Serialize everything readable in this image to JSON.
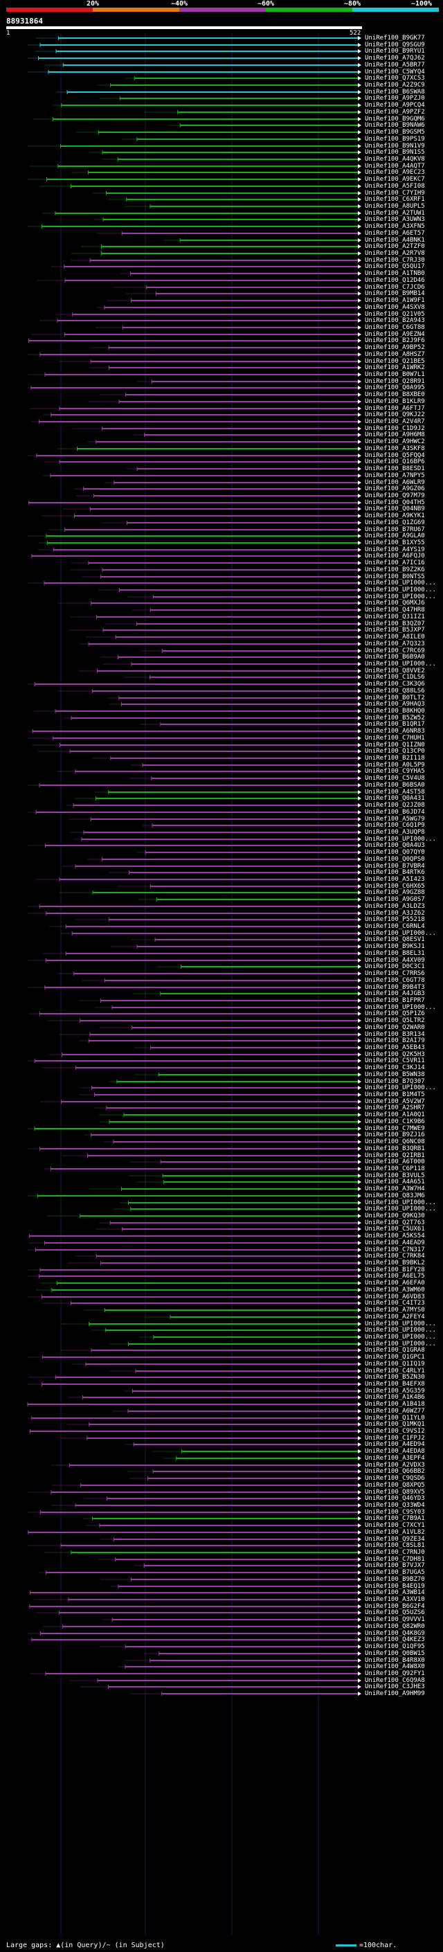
{
  "legend": {
    "percent_labels": [
      "20%",
      "~40%",
      "~60%",
      "~80%",
      "~100%"
    ],
    "colors": [
      "#e0141e",
      "#e07a1a",
      "#9e3aa8",
      "#15b215",
      "#1ec7d8"
    ]
  },
  "query": {
    "id": "88931864",
    "start": "1",
    "end": "522"
  },
  "hits": [
    {
      "label": "UniRef100_B9GK77",
      "color": "#1ec7d8"
    },
    {
      "label": "UniRef100_Q9SGU9",
      "color": "#1ec7d8"
    },
    {
      "label": "UniRef100_B9RYU1",
      "color": "#1ec7d8"
    },
    {
      "label": "UniRef100_A7QJ62",
      "color": "#1ec7d8"
    },
    {
      "label": "UniRef100_A5BR77",
      "color": "#1ec7d8"
    },
    {
      "label": "UniRef100_C5WYQ4",
      "color": "#1ec7d8"
    },
    {
      "label": "UniRef100_Q7XCS3",
      "color": "#15b215"
    },
    {
      "label": "UniRef100_A2Z9C9",
      "color": "#15b215"
    },
    {
      "label": "UniRef100_B6SWA8",
      "color": "#1ec7d8"
    },
    {
      "label": "UniRef100_A9PZJ0",
      "color": "#15b215"
    },
    {
      "label": "UniRef100_A9PCQ4",
      "color": "#15b215"
    },
    {
      "label": "UniRef100_A9PZF2",
      "color": "#15b215"
    },
    {
      "label": "UniRef100_B9GQM6",
      "color": "#15b215"
    },
    {
      "label": "UniRef100_B9NAW6",
      "color": "#15b215"
    },
    {
      "label": "UniRef100_B9GSM5",
      "color": "#15b215"
    },
    {
      "label": "UniRef100_B9PS19",
      "color": "#15b215"
    },
    {
      "label": "UniRef100_B9N1V9",
      "color": "#15b215"
    },
    {
      "label": "UniRef100_B9N1S5",
      "color": "#15b215"
    },
    {
      "label": "UniRef100_A4QKV8",
      "color": "#15b215"
    },
    {
      "label": "UniRef100_A4AQT7",
      "color": "#15b215"
    },
    {
      "label": "UniRef100_A9EC23",
      "color": "#15b215"
    },
    {
      "label": "UniRef100_A9EKC7",
      "color": "#15b215"
    },
    {
      "label": "UniRef100_A5FI08",
      "color": "#15b215"
    },
    {
      "label": "UniRef100_C7YIH9",
      "color": "#15b215"
    },
    {
      "label": "UniRef100_C6XRF1",
      "color": "#15b215"
    },
    {
      "label": "UniRef100_A8UPL5",
      "color": "#15b215"
    },
    {
      "label": "UniRef100_A2TUW1",
      "color": "#15b215"
    },
    {
      "label": "UniRef100_A3UWN3",
      "color": "#15b215"
    },
    {
      "label": "UniRef100_A3XFN5",
      "color": "#15b215"
    },
    {
      "label": "UniRef100_A6ET57",
      "color": "#9e3aa8"
    },
    {
      "label": "UniRef100_A4BNK1",
      "color": "#15b215"
    },
    {
      "label": "UniRef100_A2TZF0",
      "color": "#15b215"
    },
    {
      "label": "UniRef100_A2R7V8",
      "color": "#15b215"
    },
    {
      "label": "UniRef100_C7RJ30",
      "color": "#9e3aa8"
    },
    {
      "label": "UniRef100_Q5QU17",
      "color": "#9e3aa8"
    },
    {
      "label": "UniRef100_A1TNB0",
      "color": "#9e3aa8"
    },
    {
      "label": "UniRef100_Q12D46",
      "color": "#9e3aa8"
    },
    {
      "label": "UniRef100_C7JCD6",
      "color": "#9e3aa8"
    },
    {
      "label": "UniRef100_B9MB14",
      "color": "#9e3aa8"
    },
    {
      "label": "UniRef100_A1W9F1",
      "color": "#9e3aa8"
    },
    {
      "label": "UniRef100_A4SXV8",
      "color": "#9e3aa8"
    },
    {
      "label": "UniRef100_Q21V05",
      "color": "#9e3aa8"
    },
    {
      "label": "UniRef100_B2A943",
      "color": "#9e3aa8"
    },
    {
      "label": "UniRef100_C6GT88",
      "color": "#9e3aa8"
    },
    {
      "label": "UniRef100_A9EZN4",
      "color": "#9e3aa8"
    },
    {
      "label": "UniRef100_B2J9F6",
      "color": "#9e3aa8"
    },
    {
      "label": "UniRef100_A9BP52",
      "color": "#9e3aa8"
    },
    {
      "label": "UniRef100_A8HSZ7",
      "color": "#9e3aa8"
    },
    {
      "label": "UniRef100_Q21BE5",
      "color": "#9e3aa8"
    },
    {
      "label": "UniRef100_A1WRK2",
      "color": "#9e3aa8"
    },
    {
      "label": "UniRef100_B0W7L1",
      "color": "#9e3aa8"
    },
    {
      "label": "UniRef100_Q28R91",
      "color": "#9e3aa8"
    },
    {
      "label": "UniRef100_Q0A995",
      "color": "#9e3aa8"
    },
    {
      "label": "UniRef100_B8XBE0",
      "color": "#9e3aa8"
    },
    {
      "label": "UniRef100_B1KLR9",
      "color": "#9e3aa8"
    },
    {
      "label": "UniRef100_A6FTJ7",
      "color": "#9e3aa8"
    },
    {
      "label": "UniRef100_Q9KJ22",
      "color": "#9e3aa8"
    },
    {
      "label": "UniRef100_A2V4R7",
      "color": "#9e3aa8"
    },
    {
      "label": "UniRef100_C1D9J2",
      "color": "#9e3aa8"
    },
    {
      "label": "UniRef100_A9H6M8",
      "color": "#9e3aa8"
    },
    {
      "label": "UniRef100_A9HWC2",
      "color": "#9e3aa8"
    },
    {
      "label": "UniRef100_A3SKF8",
      "color": "#15b215"
    },
    {
      "label": "UniRef100_Q5FQQ4",
      "color": "#9e3aa8"
    },
    {
      "label": "UniRef100_Q16BP6",
      "color": "#9e3aa8"
    },
    {
      "label": "UniRef100_B8ESD1",
      "color": "#9e3aa8"
    },
    {
      "label": "UniRef100_A7NPY5",
      "color": "#9e3aa8"
    },
    {
      "label": "UniRef100_A6WLR9",
      "color": "#9e3aa8"
    },
    {
      "label": "UniRef100_A9GZ06",
      "color": "#9e3aa8"
    },
    {
      "label": "UniRef100_Q97M79",
      "color": "#9e3aa8"
    },
    {
      "label": "UniRef100_Q04TH5",
      "color": "#9e3aa8"
    },
    {
      "label": "UniRef100_Q04NB9",
      "color": "#9e3aa8"
    },
    {
      "label": "UniRef100_A9KYK1",
      "color": "#9e3aa8"
    },
    {
      "label": "UniRef100_Q1ZG69",
      "color": "#9e3aa8"
    },
    {
      "label": "UniRef100_B7RU67",
      "color": "#9e3aa8"
    },
    {
      "label": "UniRef100_A9GLA0",
      "color": "#15b215"
    },
    {
      "label": "UniRef100_B1XY55",
      "color": "#15b215"
    },
    {
      "label": "UniRef100_A4YS19",
      "color": "#9e3aa8"
    },
    {
      "label": "UniRef100_A6FQJ0",
      "color": "#9e3aa8"
    },
    {
      "label": "UniRef100_A7IC16",
      "color": "#9e3aa8"
    },
    {
      "label": "UniRef100_B9Z2K6",
      "color": "#9e3aa8"
    },
    {
      "label": "UniRef100_B0NTS5",
      "color": "#9e3aa8"
    },
    {
      "label": "UniRef100_UPI000...",
      "color": "#9e3aa8"
    },
    {
      "label": "UniRef100_UPI000...",
      "color": "#9e3aa8"
    },
    {
      "label": "UniRef100_UPI000...",
      "color": "#9e3aa8"
    },
    {
      "label": "UniRef100_Q6MXJ6",
      "color": "#9e3aa8"
    },
    {
      "label": "UniRef100_Q47HR8",
      "color": "#9e3aa8"
    },
    {
      "label": "UniRef100_Q31IZ1",
      "color": "#9e3aa8"
    },
    {
      "label": "UniRef100_B3QZ07",
      "color": "#9e3aa8"
    },
    {
      "label": "UniRef100_B5JXP7",
      "color": "#9e3aa8"
    },
    {
      "label": "UniRef100_A8ILE0",
      "color": "#9e3aa8"
    },
    {
      "label": "UniRef100_A7Q323",
      "color": "#9e3aa8"
    },
    {
      "label": "UniRef100_C7RC69",
      "color": "#9e3aa8"
    },
    {
      "label": "UniRef100_B6B9A0",
      "color": "#9e3aa8"
    },
    {
      "label": "UniRef100_UPI000...",
      "color": "#9e3aa8"
    },
    {
      "label": "UniRef100_Q8VVE2",
      "color": "#9e3aa8"
    },
    {
      "label": "UniRef100_C1DLS6",
      "color": "#9e3aa8"
    },
    {
      "label": "UniRef100_C3K3Q6",
      "color": "#9e3aa8"
    },
    {
      "label": "UniRef100_Q88LS6",
      "color": "#9e3aa8"
    },
    {
      "label": "UniRef100_B0TLT2",
      "color": "#9e3aa8"
    },
    {
      "label": "UniRef100_A9HAQ3",
      "color": "#9e3aa8"
    },
    {
      "label": "UniRef100_B8KHQ0",
      "color": "#9e3aa8"
    },
    {
      "label": "UniRef100_B5ZW52",
      "color": "#9e3aa8"
    },
    {
      "label": "UniRef100_B1QR17",
      "color": "#9e3aa8"
    },
    {
      "label": "UniRef100_A6NR83",
      "color": "#9e3aa8"
    },
    {
      "label": "UniRef100_C7HUH1",
      "color": "#9e3aa8"
    },
    {
      "label": "UniRef100_Q1IZN0",
      "color": "#9e3aa8"
    },
    {
      "label": "UniRef100_Q13CP0",
      "color": "#9e3aa8"
    },
    {
      "label": "UniRef100_B2I118",
      "color": "#9e3aa8"
    },
    {
      "label": "UniRef100_A0L5P9",
      "color": "#9e3aa8"
    },
    {
      "label": "UniRef100_C9YHA5",
      "color": "#9e3aa8"
    },
    {
      "label": "UniRef100_C5V4U8",
      "color": "#9e3aa8"
    },
    {
      "label": "UniRef100_B6BSA0",
      "color": "#9e3aa8"
    },
    {
      "label": "UniRef100_A4ST58",
      "color": "#15b215"
    },
    {
      "label": "UniRef100_Q0A431",
      "color": "#15b215"
    },
    {
      "label": "UniRef100_Q2JZ08",
      "color": "#9e3aa8"
    },
    {
      "label": "UniRef100_B6JD74",
      "color": "#9e3aa8"
    },
    {
      "label": "UniRef100_A5WG79",
      "color": "#9e3aa8"
    },
    {
      "label": "UniRef100_C6Q1P9",
      "color": "#9e3aa8"
    },
    {
      "label": "UniRef100_A3UQP8",
      "color": "#9e3aa8"
    },
    {
      "label": "UniRef100_UPI000...",
      "color": "#9e3aa8"
    },
    {
      "label": "UniRef100_Q0A4U3",
      "color": "#9e3aa8"
    },
    {
      "label": "UniRef100_Q07QY0",
      "color": "#9e3aa8"
    },
    {
      "label": "UniRef100_Q0QPS0",
      "color": "#9e3aa8"
    },
    {
      "label": "UniRef100_B7VBR4",
      "color": "#9e3aa8"
    },
    {
      "label": "UniRef100_B4RTK6",
      "color": "#9e3aa8"
    },
    {
      "label": "UniRef100_A5I423",
      "color": "#9e3aa8"
    },
    {
      "label": "UniRef100_C6HX65",
      "color": "#9e3aa8"
    },
    {
      "label": "UniRef100_A9GZ88",
      "color": "#15b215"
    },
    {
      "label": "UniRef100_A9G0S7",
      "color": "#15b215"
    },
    {
      "label": "UniRef100_A3LDZ3",
      "color": "#9e3aa8"
    },
    {
      "label": "UniRef100_A3JZ62",
      "color": "#9e3aa8"
    },
    {
      "label": "UniRef100_P55218",
      "color": "#9e3aa8"
    },
    {
      "label": "UniRef100_C6RNL4",
      "color": "#9e3aa8"
    },
    {
      "label": "UniRef100_UPI000...",
      "color": "#9e3aa8"
    },
    {
      "label": "UniRef100_Q8ESV1",
      "color": "#9e3aa8"
    },
    {
      "label": "UniRef100_B9KSJ1",
      "color": "#9e3aa8"
    },
    {
      "label": "UniRef100_B8EL31",
      "color": "#9e3aa8"
    },
    {
      "label": "UniRef100_A4XV09",
      "color": "#9e3aa8"
    },
    {
      "label": "UniRef100_D0C3C1",
      "color": "#15b215"
    },
    {
      "label": "UniRef100_C7RRS6",
      "color": "#9e3aa8"
    },
    {
      "label": "UniRef100_C6GT78",
      "color": "#9e3aa8"
    },
    {
      "label": "UniRef100_B9B4T3",
      "color": "#9e3aa8"
    },
    {
      "label": "UniRef100_A4JGB3",
      "color": "#15b215"
    },
    {
      "label": "UniRef100_B1FPR7",
      "color": "#9e3aa8"
    },
    {
      "label": "UniRef100_UPI000...",
      "color": "#9e3aa8"
    },
    {
      "label": "UniRef100_Q5P1Z6",
      "color": "#9e3aa8"
    },
    {
      "label": "UniRef100_Q5LTR2",
      "color": "#9e3aa8"
    },
    {
      "label": "UniRef100_Q2WAR0",
      "color": "#9e3aa8"
    },
    {
      "label": "UniRef100_B3R134",
      "color": "#9e3aa8"
    },
    {
      "label": "UniRef100_B2AI79",
      "color": "#9e3aa8"
    },
    {
      "label": "UniRef100_A5EB43",
      "color": "#9e3aa8"
    },
    {
      "label": "UniRef100_Q2K5H3",
      "color": "#9e3aa8"
    },
    {
      "label": "UniRef100_C5VR11",
      "color": "#9e3aa8"
    },
    {
      "label": "UniRef100_C3KJ14",
      "color": "#9e3aa8"
    },
    {
      "label": "UniRef100_B5WN38",
      "color": "#15b215"
    },
    {
      "label": "UniRef100_B7Q307",
      "color": "#15b215"
    },
    {
      "label": "UniRef100_UPI000...",
      "color": "#9e3aa8"
    },
    {
      "label": "UniRef100_B1M4T5",
      "color": "#9e3aa8"
    },
    {
      "label": "UniRef100_A5V2W7",
      "color": "#9e3aa8"
    },
    {
      "label": "UniRef100_A2SHR7",
      "color": "#9e3aa8"
    },
    {
      "label": "UniRef100_A1A0Q1",
      "color": "#15b215"
    },
    {
      "label": "UniRef100_C1K9B6",
      "color": "#15b215"
    },
    {
      "label": "UniRef100_C7MWE9",
      "color": "#15b215"
    },
    {
      "label": "UniRef100_B9ZJ16",
      "color": "#9e3aa8"
    },
    {
      "label": "UniRef100_Q6NC08",
      "color": "#9e3aa8"
    },
    {
      "label": "UniRef100_B3QRB1",
      "color": "#9e3aa8"
    },
    {
      "label": "UniRef100_Q2IRB1",
      "color": "#9e3aa8"
    },
    {
      "label": "UniRef100_A6T000",
      "color": "#9e3aa8"
    },
    {
      "label": "UniRef100_C6P118",
      "color": "#9e3aa8"
    },
    {
      "label": "UniRef100_B3VUL5",
      "color": "#15b215"
    },
    {
      "label": "UniRef100_A4A651",
      "color": "#15b215"
    },
    {
      "label": "UniRef100_A3W7H4",
      "color": "#15b215"
    },
    {
      "label": "UniRef100_Q83JM6",
      "color": "#15b215"
    },
    {
      "label": "UniRef100_UPI000...",
      "color": "#15b215"
    },
    {
      "label": "UniRef100_UPI000...",
      "color": "#15b215"
    },
    {
      "label": "UniRef100_Q9KQ30",
      "color": "#15b215"
    },
    {
      "label": "UniRef100_Q2T763",
      "color": "#9e3aa8"
    },
    {
      "label": "UniRef100_C5UX61",
      "color": "#9e3aa8"
    },
    {
      "label": "UniRef100_A5KS54",
      "color": "#9e3aa8"
    },
    {
      "label": "UniRef100_A4EAD9",
      "color": "#9e3aa8"
    },
    {
      "label": "UniRef100_C7N317",
      "color": "#9e3aa8"
    },
    {
      "label": "UniRef100_C7RK84",
      "color": "#9e3aa8"
    },
    {
      "label": "UniRef100_B9BKL2",
      "color": "#9e3aa8"
    },
    {
      "label": "UniRef100_B1FY28",
      "color": "#9e3aa8"
    },
    {
      "label": "UniRef100_A6EL75",
      "color": "#9e3aa8"
    },
    {
      "label": "UniRef100_A6EFA0",
      "color": "#15b215"
    },
    {
      "label": "UniRef100_A3WM60",
      "color": "#15b215"
    },
    {
      "label": "UniRef100_A6VD83",
      "color": "#9e3aa8"
    },
    {
      "label": "UniRef100_C4IT23",
      "color": "#9e3aa8"
    },
    {
      "label": "UniRef100_A7MYS0",
      "color": "#15b215"
    },
    {
      "label": "UniRef100_A2FEY4",
      "color": "#15b215"
    },
    {
      "label": "UniRef100_UPI000...",
      "color": "#15b215"
    },
    {
      "label": "UniRef100_UPI000...",
      "color": "#15b215"
    },
    {
      "label": "UniRef100_UPI000...",
      "color": "#15b215"
    },
    {
      "label": "UniRef100_UPI000...",
      "color": "#15b215"
    },
    {
      "label": "UniRef100_Q1GRA8",
      "color": "#9e3aa8"
    },
    {
      "label": "UniRef100_Q1GPC1",
      "color": "#9e3aa8"
    },
    {
      "label": "UniRef100_Q1IQ19",
      "color": "#9e3aa8"
    },
    {
      "label": "UniRef100_C4RLY1",
      "color": "#9e3aa8"
    },
    {
      "label": "UniRef100_B5ZN30",
      "color": "#9e3aa8"
    },
    {
      "label": "UniRef100_B4EFX8",
      "color": "#9e3aa8"
    },
    {
      "label": "UniRef100_A5G359",
      "color": "#9e3aa8"
    },
    {
      "label": "UniRef100_A1K4B6",
      "color": "#9e3aa8"
    },
    {
      "label": "UniRef100_A1B418",
      "color": "#9e3aa8"
    },
    {
      "label": "UniRef100_A6WZ77",
      "color": "#9e3aa8"
    },
    {
      "label": "UniRef100_Q1IYL0",
      "color": "#9e3aa8"
    },
    {
      "label": "UniRef100_Q1MKQ1",
      "color": "#9e3aa8"
    },
    {
      "label": "UniRef100_C9VSI2",
      "color": "#9e3aa8"
    },
    {
      "label": "UniRef100_C1FPJ2",
      "color": "#9e3aa8"
    },
    {
      "label": "UniRef100_A4ED94",
      "color": "#9e3aa8"
    },
    {
      "label": "UniRef100_A4EDA8",
      "color": "#15b215"
    },
    {
      "label": "UniRef100_A3EPF4",
      "color": "#15b215"
    },
    {
      "label": "UniRef100_A2VDX3",
      "color": "#9e3aa8"
    },
    {
      "label": "UniRef100_Q66BB2",
      "color": "#9e3aa8"
    },
    {
      "label": "UniRef100_C9QSD6",
      "color": "#9e3aa8"
    },
    {
      "label": "UniRef100_Q8XPQ5",
      "color": "#9e3aa8"
    },
    {
      "label": "UniRef100_Q89XV5",
      "color": "#9e3aa8"
    },
    {
      "label": "UniRef100_Q46YD3",
      "color": "#9e3aa8"
    },
    {
      "label": "UniRef100_Q33WD4",
      "color": "#9e3aa8"
    },
    {
      "label": "UniRef100_C9SY03",
      "color": "#9e3aa8"
    },
    {
      "label": "UniRef100_C7B9A1",
      "color": "#15b215"
    },
    {
      "label": "UniRef100_C7XCY1",
      "color": "#9e3aa8"
    },
    {
      "label": "UniRef100_A1VL82",
      "color": "#9e3aa8"
    },
    {
      "label": "UniRef100_Q9ZE34",
      "color": "#9e3aa8"
    },
    {
      "label": "UniRef100_C8SL81",
      "color": "#9e3aa8"
    },
    {
      "label": "UniRef100_C7RNJ0",
      "color": "#15b215"
    },
    {
      "label": "UniRef100_C7DH81",
      "color": "#9e3aa8"
    },
    {
      "label": "UniRef100_B7VJX7",
      "color": "#9e3aa8"
    },
    {
      "label": "UniRef100_B7UGA5",
      "color": "#9e3aa8"
    },
    {
      "label": "UniRef100_B9BZ70",
      "color": "#9e3aa8"
    },
    {
      "label": "UniRef100_B4EQ19",
      "color": "#9e3aa8"
    },
    {
      "label": "UniRef100_A3WB14",
      "color": "#9e3aa8"
    },
    {
      "label": "UniRef100_A3XV10",
      "color": "#9e3aa8"
    },
    {
      "label": "UniRef100_B6G2F4",
      "color": "#9e3aa8"
    },
    {
      "label": "UniRef100_Q5UZS6",
      "color": "#9e3aa8"
    },
    {
      "label": "UniRef100_Q9VVV1",
      "color": "#9e3aa8"
    },
    {
      "label": "UniRef100_Q82WR0",
      "color": "#9e3aa8"
    },
    {
      "label": "UniRef100_Q4K8G9",
      "color": "#9e3aa8"
    },
    {
      "label": "UniRef100_Q4KEZ3",
      "color": "#9e3aa8"
    },
    {
      "label": "UniRef100_Q1QF95",
      "color": "#9e3aa8"
    },
    {
      "label": "UniRef100_Q0BW15",
      "color": "#9e3aa8"
    },
    {
      "label": "UniRef100_B4R8X0",
      "color": "#9e3aa8"
    },
    {
      "label": "UniRef100_A4W8X0",
      "color": "#9e3aa8"
    },
    {
      "label": "UniRef100_Q92FY1",
      "color": "#9e3aa8"
    },
    {
      "label": "UniRef100_C6Q9A8",
      "color": "#9e3aa8"
    },
    {
      "label": "UniRef100_C3JHE3",
      "color": "#9e3aa8"
    },
    {
      "label": "UniRef100_A9HM99",
      "color": "#9e3aa8"
    }
  ],
  "footer": {
    "text": "Large gaps: ▲(in Query)/~ (in Subject)",
    "scale_text": "=100char."
  }
}
